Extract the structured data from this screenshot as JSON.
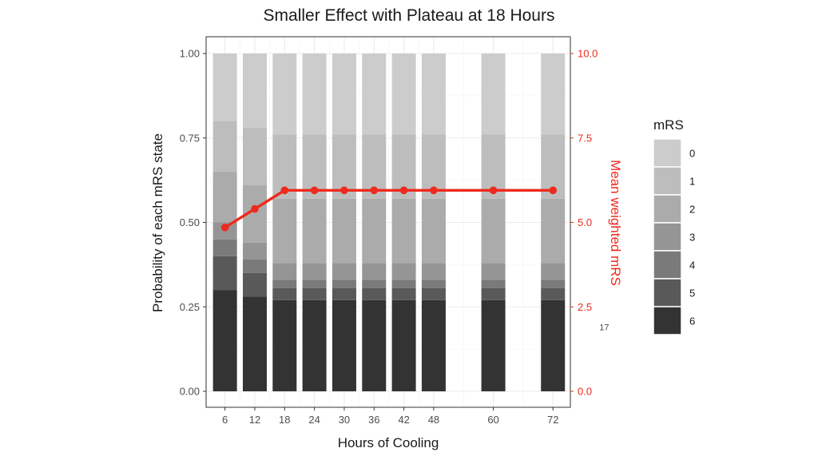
{
  "chart_data": {
    "type": "bar",
    "subtype": "stacked-proportion-with-line-overlay",
    "title": "Smaller Effect with Plateau at 18 Hours",
    "xlabel": "Hours of Cooling",
    "ylabel": "Probability of each mRS state",
    "y2label": "Mean weighted mRS",
    "x": [
      6,
      12,
      18,
      24,
      30,
      36,
      42,
      48,
      60,
      72
    ],
    "x_ticks": [
      6,
      12,
      18,
      24,
      30,
      36,
      42,
      48,
      60,
      72
    ],
    "ylim": [
      0,
      1
    ],
    "y_ticks": [
      "0.00",
      "0.25",
      "0.50",
      "0.75",
      "1.00"
    ],
    "y2lim": [
      0,
      10
    ],
    "y2_ticks": [
      "0.0",
      "2.5",
      "5.0",
      "7.5",
      "10.0"
    ],
    "grid": true,
    "legend": {
      "title": "mRS",
      "position": "right",
      "entries": [
        "0",
        "1",
        "2",
        "3",
        "4",
        "5",
        "6"
      ]
    },
    "stack_series": [
      {
        "name": "6",
        "color": "#333333",
        "values": [
          0.3,
          0.28,
          0.27,
          0.27,
          0.27,
          0.27,
          0.27,
          0.27,
          0.27,
          0.27
        ]
      },
      {
        "name": "5",
        "color": "#595959",
        "values": [
          0.1,
          0.07,
          0.035,
          0.035,
          0.035,
          0.035,
          0.035,
          0.035,
          0.035,
          0.035
        ]
      },
      {
        "name": "4",
        "color": "#7a7a7a",
        "values": [
          0.05,
          0.04,
          0.025,
          0.025,
          0.025,
          0.025,
          0.025,
          0.025,
          0.025,
          0.025
        ]
      },
      {
        "name": "3",
        "color": "#959595",
        "values": [
          0.05,
          0.05,
          0.05,
          0.05,
          0.05,
          0.05,
          0.05,
          0.05,
          0.05,
          0.05
        ]
      },
      {
        "name": "2",
        "color": "#ababab",
        "values": [
          0.15,
          0.17,
          0.19,
          0.19,
          0.19,
          0.19,
          0.19,
          0.19,
          0.19,
          0.19
        ]
      },
      {
        "name": "1",
        "color": "#bdbdbd",
        "values": [
          0.15,
          0.17,
          0.19,
          0.19,
          0.19,
          0.19,
          0.19,
          0.19,
          0.19,
          0.19
        ]
      },
      {
        "name": "0",
        "color": "#cccccc",
        "values": [
          0.2,
          0.22,
          0.24,
          0.24,
          0.24,
          0.24,
          0.24,
          0.24,
          0.24,
          0.24
        ]
      }
    ],
    "line_series": {
      "name": "Mean weighted mRS",
      "color": "#ee2a1d",
      "values": [
        4.85,
        5.4,
        5.95,
        5.95,
        5.95,
        5.95,
        5.95,
        5.95,
        5.95,
        5.95
      ]
    },
    "annotations": [
      {
        "text": "17",
        "x": 72,
        "y2": 1.9
      }
    ]
  }
}
